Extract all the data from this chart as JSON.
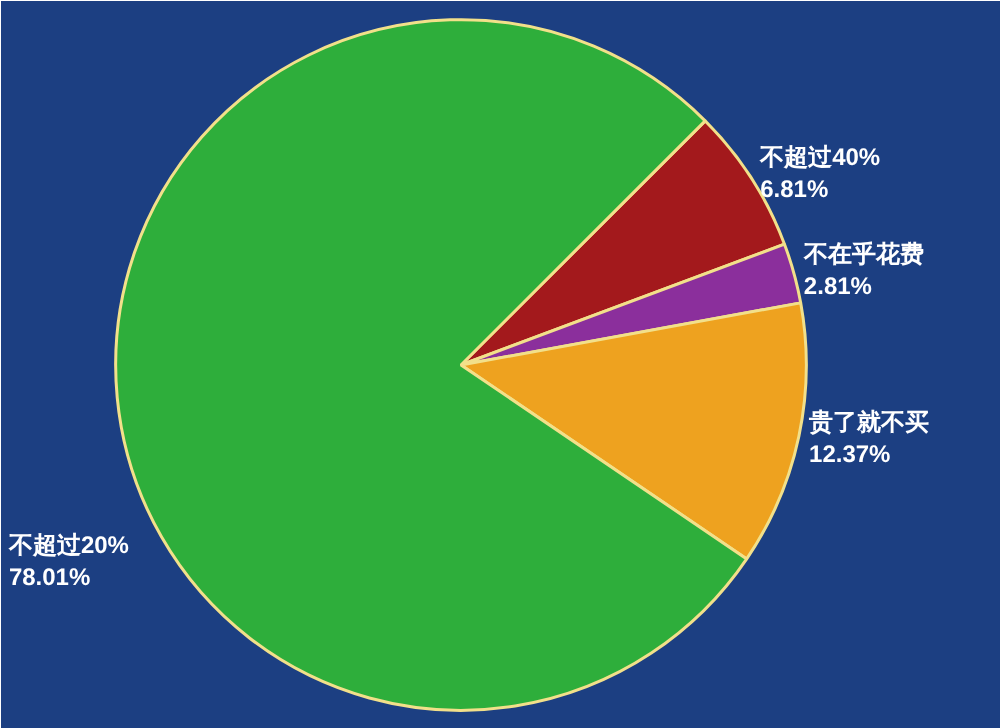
{
  "chart_data": {
    "type": "pie",
    "categories": [
      "不超过40%",
      "不在乎花费",
      "贵了就不买",
      "不超过20%"
    ],
    "values": [
      6.81,
      2.81,
      12.37,
      78.01
    ],
    "value_labels": [
      "6.81%",
      "2.81%",
      "12.37%",
      "78.01%"
    ],
    "colors": [
      "#a3191c",
      "#8b2f9c",
      "#eea21f",
      "#2eae3b"
    ]
  }
}
